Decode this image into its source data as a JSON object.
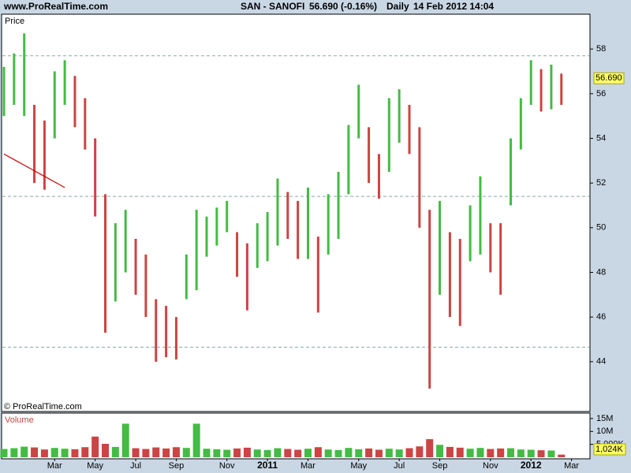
{
  "header": {
    "site": "www.ProRealTime.com",
    "symbol": "SAN - SANOFI",
    "quote": "56.690 (-0.16%)",
    "period": "Daily",
    "date": "14 Feb 2012 14:04"
  },
  "chart_data": [
    {
      "type": "range-bar",
      "title": "Price",
      "footer": "© ProRealTime.com",
      "categories": [
        null,
        null,
        null,
        null,
        null,
        "Mar",
        null,
        null,
        null,
        "May",
        null,
        null,
        null,
        "Jul",
        null,
        null,
        null,
        "Sep",
        null,
        null,
        null,
        null,
        "Nov",
        null,
        null,
        null,
        "2011",
        null,
        null,
        null,
        "Mar",
        null,
        null,
        null,
        null,
        "May",
        null,
        null,
        null,
        "Jul",
        null,
        null,
        null,
        "Sep",
        null,
        null,
        null,
        null,
        "Nov",
        null,
        null,
        null,
        "2012",
        null,
        null,
        null,
        "Mar"
      ],
      "high": [
        57.2,
        57.8,
        58.7,
        55.5,
        54.8,
        57,
        57.5,
        56.8,
        55.8,
        54,
        51.5,
        50.2,
        50.8,
        49.5,
        48.8,
        46.8,
        46.5,
        46,
        48.8,
        50.8,
        50.5,
        50.9,
        51.2,
        49.8,
        49.3,
        50.2,
        50.7,
        52.2,
        51.6,
        51.2,
        51.8,
        49.6,
        51.5,
        52.5,
        54.6,
        56.4,
        54.5,
        53.3,
        55.8,
        56.2,
        55.5,
        54.5,
        50.8,
        51.2,
        49.8,
        49.5,
        51,
        52.3,
        50.2,
        50.2,
        54,
        55.8,
        57.5,
        57.1,
        57.3,
        56.9,
        null
      ],
      "low": [
        55,
        55.5,
        55,
        52,
        51.7,
        54,
        55.5,
        54.5,
        53.5,
        50.5,
        45.3,
        46.7,
        48,
        47,
        46,
        44,
        44.2,
        44.1,
        46.8,
        47.2,
        48.7,
        49.2,
        49.8,
        47.8,
        46.3,
        48.2,
        48.5,
        49.2,
        49.5,
        48.6,
        48.6,
        46.2,
        48.8,
        49.5,
        51.5,
        54,
        52,
        51.3,
        52.5,
        53.8,
        53.3,
        50,
        42.8,
        47,
        46,
        45.6,
        48.5,
        48.8,
        48,
        47,
        51,
        53.5,
        55.5,
        55.2,
        55.3,
        55.5,
        null
      ],
      "up_color": "#44bb44",
      "down_color": "#cc4444",
      "trendline": {
        "color": "#cc0000",
        "values": [
          53.3,
          53.05,
          52.8,
          52.55,
          52.3,
          52.05,
          51.8,
          null,
          null,
          null,
          null,
          null,
          null,
          null,
          null,
          null,
          null,
          null,
          null,
          null,
          null,
          null,
          null,
          null,
          null,
          null,
          null,
          null,
          null,
          null,
          null,
          null,
          null,
          null,
          null,
          null,
          null,
          null,
          null,
          null,
          null,
          null,
          null,
          null,
          null,
          null,
          null,
          null,
          null,
          null,
          null,
          null,
          null,
          null,
          null,
          null,
          null
        ]
      },
      "hlines": [
        57.7,
        51.4,
        44.65
      ],
      "last": {
        "value": 56.69,
        "label": "56.690"
      },
      "ylim": [
        41.77,
        59.56
      ],
      "yticks": [
        44,
        46,
        48,
        50,
        52,
        54,
        56,
        58
      ]
    },
    {
      "type": "volume",
      "title": "Volume",
      "values": [
        3200000,
        3500000,
        4100000,
        3800000,
        3000000,
        3600000,
        3300000,
        3100000,
        3900000,
        8000000,
        5200000,
        4000000,
        13000000,
        3500000,
        3200000,
        3800000,
        3400000,
        3900000,
        3600000,
        13000000,
        3300000,
        3100000,
        2900000,
        3400000,
        3700000,
        3000000,
        2800000,
        3500000,
        3200000,
        2900000,
        3300000,
        3900000,
        3000000,
        2800000,
        3600000,
        3100000,
        3400000,
        2900000,
        3300000,
        3000000,
        3500000,
        4200000,
        7000000,
        4800000,
        4000000,
        3700000,
        3300000,
        3600000,
        3200000,
        3400000,
        3500000,
        3000000,
        2900000,
        2700000,
        2600000,
        1024000,
        null
      ],
      "value_labels": [
        null,
        null,
        null,
        null,
        null,
        null,
        null,
        null,
        null,
        null,
        null,
        null,
        null,
        null,
        null,
        null,
        null,
        null,
        null,
        null,
        null,
        null,
        null,
        null,
        null,
        null,
        null,
        null,
        null,
        null,
        null,
        null,
        null,
        null,
        null,
        null,
        null,
        null,
        null,
        null,
        null,
        null,
        null,
        null,
        null,
        null,
        null,
        null,
        null,
        null,
        null,
        null,
        null,
        null,
        null,
        "1,024K",
        null
      ],
      "ylim": [
        0,
        16500000
      ],
      "yticks": [
        {
          "value": 15000000,
          "label": "15M"
        },
        {
          "value": 10000000,
          "label": "10M"
        },
        {
          "value": 5000000,
          "label": "5,000K"
        }
      ]
    }
  ]
}
